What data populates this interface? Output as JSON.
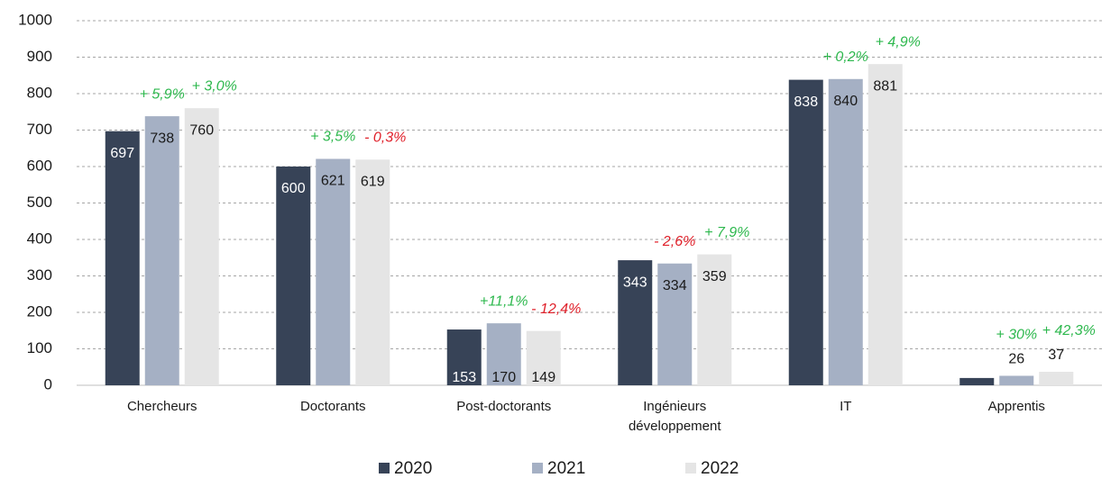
{
  "chart_data": {
    "type": "bar",
    "categories": [
      "Chercheurs",
      "Doctorants",
      "Post-doctorants",
      "Ingénieurs développement",
      "IT",
      "Apprentis"
    ],
    "series": [
      {
        "name": "2020",
        "color": "#374357",
        "values": [
          697,
          600,
          153,
          343,
          838,
          20
        ],
        "value_labels": [
          "697",
          "600",
          "153",
          "343",
          "838",
          null
        ]
      },
      {
        "name": "2021",
        "color": "#a5b0c4",
        "values": [
          738,
          621,
          170,
          334,
          840,
          26
        ],
        "changes": [
          {
            "text": "+ 5,9%",
            "color": "#2eb84e"
          },
          {
            "text": "+ 3,5%",
            "color": "#2eb84e"
          },
          {
            "text": "+11,1%",
            "color": "#2eb84e"
          },
          {
            "text": "- 2,6%",
            "color": "#e0202a"
          },
          {
            "text": "+ 0,2%",
            "color": "#2eb84e"
          },
          {
            "text": "+ 30%",
            "color": "#2eb84e"
          }
        ]
      },
      {
        "name": "2022",
        "color": "#e5e5e5",
        "values": [
          760,
          619,
          149,
          359,
          881,
          37
        ],
        "changes": [
          {
            "text": "+ 3,0%",
            "color": "#2eb84e"
          },
          {
            "text": "- 0,3%",
            "color": "#e0202a"
          },
          {
            "text": "- 12,4%",
            "color": "#e0202a"
          },
          {
            "text": "+ 7,9%",
            "color": "#2eb84e"
          },
          {
            "text": "+ 4,9%",
            "color": "#2eb84e"
          },
          {
            "text": "+ 42,3%",
            "color": "#2eb84e"
          }
        ]
      }
    ],
    "ylim": [
      0,
      1000
    ],
    "yticks": [
      0,
      100,
      200,
      300,
      400,
      500,
      600,
      700,
      800,
      900,
      1000
    ],
    "grid": true,
    "legend": "bottom"
  }
}
